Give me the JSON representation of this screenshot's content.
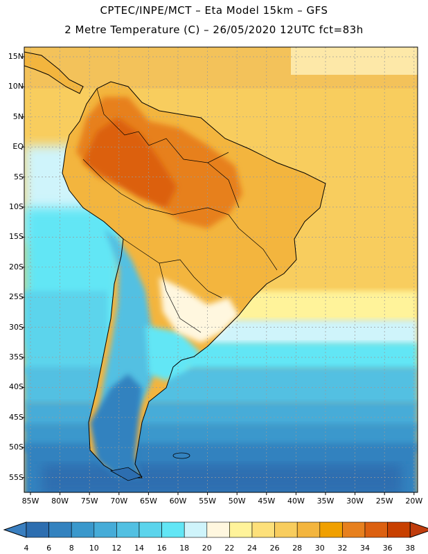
{
  "title": {
    "line1": "CPTEC/INPE/MCT –  Eta Model 15km – GFS",
    "line2": "2 Metre Temperature (C) – 26/05/2020 12UTC fct=83h"
  },
  "map": {
    "lat_labels": [
      "15N",
      "10N",
      "5N",
      "EQ",
      "5S",
      "10S",
      "15S",
      "20S",
      "25S",
      "30S",
      "35S",
      "40S",
      "45S",
      "50S",
      "55S"
    ],
    "lon_labels": [
      "85W",
      "80W",
      "75W",
      "70W",
      "65W",
      "60W",
      "55W",
      "50W",
      "45W",
      "40W",
      "35W",
      "30W",
      "25W",
      "20W"
    ]
  },
  "colorbar": {
    "ticks": [
      "4",
      "6",
      "8",
      "10",
      "12",
      "14",
      "16",
      "18",
      "20",
      "22",
      "24",
      "26",
      "28",
      "30",
      "32",
      "34",
      "36",
      "38"
    ],
    "colors": [
      "#2d6eb0",
      "#3382bf",
      "#3a98cc",
      "#46acd8",
      "#52c0e2",
      "#5bd4ec",
      "#62e6f5",
      "#cff4fb",
      "#fff7df",
      "#fff39a",
      "#fde07a",
      "#f8cd5e",
      "#f3b53e",
      "#f0a000",
      "#e7801e",
      "#dc6010",
      "#c84000"
    ],
    "left_color": "#3a7fc0",
    "right_color": "#c03d0d"
  },
  "legend_colors": {
    "ocean_south_deep": "#2d6eb0",
    "ocean_south": "#3a98cc",
    "ocean_mid": "#52c0e2",
    "ocean_cool": "#62e6f5",
    "pale_band": "#cff4fb",
    "warm_north": "#f8cd5e",
    "hot_land": "#e7801e"
  }
}
